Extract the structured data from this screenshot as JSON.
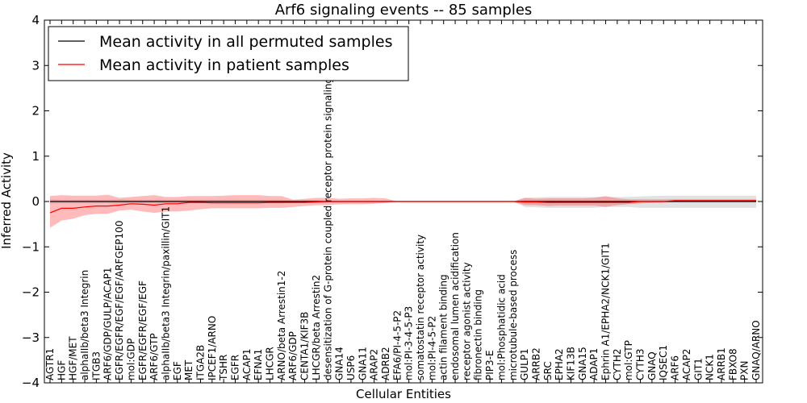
{
  "chart_data": {
    "type": "line",
    "title": "Arf6 signaling events -- 85 samples",
    "xlabel": "Cellular Entities",
    "ylabel": "Inferred Activity",
    "ylim": [
      -4,
      4
    ],
    "yticks": [
      4,
      3,
      2,
      1,
      0,
      -1,
      -2,
      -3,
      -4
    ],
    "ytick_labels": [
      "4",
      "3",
      "2",
      "1",
      "0",
      "−1",
      "−2",
      "−3",
      "−4"
    ],
    "legend_position": "top-left",
    "categories": [
      "AGTR1",
      "HGF",
      "HGF/MET",
      "alphaIIb/beta3 Integrin",
      "ITGB3",
      "ARF6/GDP/GULP/ACAP1",
      "EGFR/EGFR/EGF/EGF/ARFGEP100",
      "mol:GDP",
      "EGFR/EGFR/EGF/EGF",
      "ARF6/GTP",
      "alphaIIb/beta3 Integrin/paxillin/GIT1",
      "EGF",
      "MET",
      "ITGA2B",
      "IPCEF1/ARNO",
      "TSHR",
      "EGFR",
      "ACAP1",
      "EFNA1",
      "LHCGR",
      "ARNO/beta Arrestin1-2",
      "ARF6/GDP",
      "CENTA1/KIF3B",
      "LHCGR/beta Arrestin2",
      "desensitization of G-protein coupled receptor protein signaling pathway",
      "GNA14",
      "USP6",
      "GNA11",
      "ARAP2",
      "ADRB2",
      "EFA6/PI-4-5-P2",
      "mol:PI-3-4-5-P3",
      "somatostatin receptor activity",
      "mol:PI-4-5-P2",
      "actin filament binding",
      "endosomal lumen acidification",
      "receptor agonist activity",
      "fibronectin binding",
      "PIP3-E",
      "mol:Phosphatidic acid",
      "microtubule-based process",
      "GULP1",
      "ARRB2",
      "SRC",
      "EPHA2",
      "KIF13B",
      "GNA15",
      "ADAP1",
      "Ephrin A1/EPHA2/NCK1/GIT1",
      "CYTH2",
      "mol:GTP",
      "CYTH3",
      "GNAQ",
      "IQSEC1",
      "ARF6",
      "ACAP2",
      "GIT1",
      "NCK1",
      "ARRB1",
      "FBXO8",
      "PXN",
      "GNAQ/ARNO"
    ],
    "series": [
      {
        "name": "Mean activity in all permuted samples",
        "color": "#000000",
        "values": [
          0,
          0,
          0,
          0,
          0,
          0,
          0,
          0,
          0,
          0,
          0,
          0,
          0,
          0,
          0,
          0,
          0,
          0,
          0,
          0,
          0,
          0,
          0,
          0,
          0,
          0,
          0,
          0,
          0,
          0,
          0,
          0,
          0,
          0,
          0,
          0,
          0,
          0,
          0,
          0,
          0,
          0,
          0,
          0,
          0,
          0,
          0,
          0,
          0,
          0,
          0,
          0,
          0,
          0,
          0,
          0,
          0,
          0,
          0,
          0,
          0,
          0
        ],
        "lower": [
          -0.05,
          -0.04,
          -0.04,
          -0.04,
          -0.04,
          -0.04,
          -0.05,
          -0.04,
          -0.04,
          -0.04,
          -0.04,
          -0.04,
          -0.04,
          -0.04,
          -0.04,
          -0.04,
          -0.04,
          -0.04,
          -0.04,
          -0.04,
          -0.04,
          -0.03,
          -0.03,
          -0.03,
          -0.02,
          -0.01,
          -0.01,
          -0.01,
          -0.01,
          -0.01,
          0,
          0,
          0,
          0,
          0,
          0,
          0,
          0,
          0,
          0,
          0,
          -0.12,
          -0.13,
          -0.14,
          -0.14,
          -0.14,
          -0.14,
          -0.14,
          -0.12,
          -0.12,
          -0.12,
          -0.14,
          -0.14,
          -0.14,
          -0.14,
          -0.14,
          -0.14,
          -0.14,
          -0.14,
          -0.14,
          -0.14,
          -0.14
        ],
        "upper": [
          0.05,
          0.04,
          0.04,
          0.04,
          0.04,
          0.04,
          0.05,
          0.04,
          0.04,
          0.04,
          0.04,
          0.04,
          0.04,
          0.04,
          0.04,
          0.04,
          0.04,
          0.04,
          0.04,
          0.04,
          0.04,
          0.03,
          0.03,
          0.03,
          0.02,
          0.01,
          0.01,
          0.01,
          0.01,
          0.01,
          0,
          0,
          0,
          0,
          0,
          0,
          0,
          0,
          0,
          0,
          0,
          0.08,
          0.09,
          0.1,
          0.1,
          0.1,
          0.1,
          0.1,
          0.1,
          0.1,
          0.1,
          0.11,
          0.12,
          0.13,
          0.13,
          0.13,
          0.13,
          0.13,
          0.13,
          0.13,
          0.13,
          0.13
        ]
      },
      {
        "name": "Mean activity in patient samples",
        "color": "#ff0000",
        "values": [
          -0.25,
          -0.15,
          -0.15,
          -0.12,
          -0.1,
          -0.1,
          -0.08,
          -0.05,
          -0.06,
          -0.08,
          -0.05,
          -0.05,
          -0.02,
          -0.02,
          -0.03,
          -0.03,
          -0.03,
          -0.03,
          -0.03,
          -0.02,
          -0.02,
          -0.02,
          -0.02,
          -0.01,
          0,
          0,
          0,
          0,
          0,
          0,
          0,
          0,
          0,
          0,
          0,
          0,
          0,
          0,
          0,
          0,
          0,
          -0.01,
          -0.01,
          -0.02,
          -0.02,
          -0.02,
          -0.02,
          -0.02,
          -0.02,
          -0.02,
          -0.02,
          0,
          0,
          0,
          0.02,
          0.02,
          0.02,
          0.02,
          0.02,
          0.02,
          0.02,
          0.02
        ],
        "lower": [
          -0.58,
          -0.42,
          -0.38,
          -0.3,
          -0.27,
          -0.27,
          -0.2,
          -0.18,
          -0.22,
          -0.25,
          -0.22,
          -0.22,
          -0.2,
          -0.17,
          -0.15,
          -0.15,
          -0.15,
          -0.15,
          -0.15,
          -0.14,
          -0.14,
          -0.12,
          -0.1,
          -0.08,
          -0.08,
          -0.06,
          -0.06,
          -0.06,
          -0.05,
          -0.03,
          0,
          0,
          0,
          0,
          0,
          0,
          0,
          0,
          0,
          0,
          0,
          -0.08,
          -0.08,
          -0.1,
          -0.09,
          -0.09,
          -0.09,
          -0.09,
          -0.12,
          -0.08,
          -0.06,
          -0.04,
          -0.03,
          -0.02,
          -0.01,
          -0.01,
          -0.01,
          -0.01,
          -0.01,
          -0.01,
          -0.01,
          -0.01
        ],
        "upper": [
          0.12,
          0.14,
          0.13,
          0.13,
          0.13,
          0.15,
          0.08,
          0.1,
          0.12,
          0.14,
          0.1,
          0.1,
          0.12,
          0.12,
          0.12,
          0.13,
          0.14,
          0.14,
          0.14,
          0.12,
          0.12,
          0.04,
          0.06,
          0.08,
          0.08,
          0.06,
          0.07,
          0.07,
          0.08,
          0.07,
          0,
          0,
          0,
          0,
          0,
          0,
          0,
          0,
          0,
          0,
          0,
          0.08,
          0.06,
          0.07,
          0.07,
          0.07,
          0.07,
          0.08,
          0.12,
          0.07,
          0.05,
          0.05,
          0.05,
          0.05,
          0.05,
          0.05,
          0.05,
          0.05,
          0.05,
          0.05,
          0.05,
          0.05
        ]
      }
    ]
  }
}
